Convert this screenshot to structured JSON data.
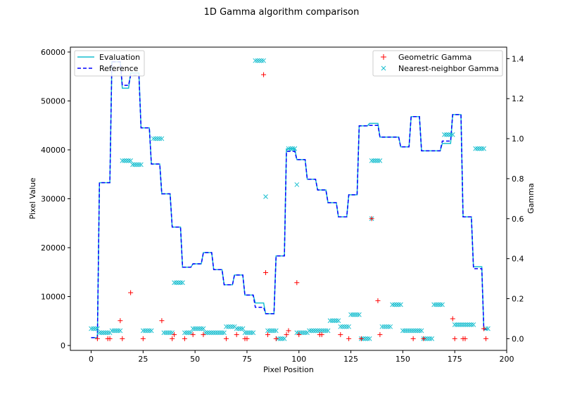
{
  "chart_data": {
    "type": "line",
    "title": "1D Gamma algorithm comparison",
    "xlabel": "Pixel Position",
    "ylabel": "Pixel Value",
    "y2label": "Gamma",
    "xlim": [
      -10,
      200
    ],
    "ylim": [
      -1000,
      61000
    ],
    "y2lim": [
      -0.0585,
      1.4575
    ],
    "x_ticks": [
      0,
      25,
      50,
      75,
      100,
      125,
      150,
      175,
      200
    ],
    "y_ticks": [
      0,
      10000,
      20000,
      30000,
      40000,
      50000,
      60000
    ],
    "y2_ticks": [
      0.0,
      0.2,
      0.4,
      0.6,
      0.8,
      1.0,
      1.2,
      1.4
    ],
    "legend_left": {
      "placement": "upper-left",
      "entries": [
        {
          "label": "Evaluation",
          "color": "#17becf",
          "style": "solid"
        },
        {
          "label": "Reference",
          "color": "#0000ff",
          "style": "dashed"
        }
      ]
    },
    "legend_right": {
      "placement": "upper-right",
      "entries": [
        {
          "label": "Geometric Gamma",
          "color": "#ff0000",
          "marker": "+"
        },
        {
          "label": "Nearest-neighbor Gamma",
          "color": "#17becf",
          "marker": "x"
        }
      ]
    },
    "reference_steps": [
      [
        0,
        1600
      ],
      [
        3,
        1600
      ],
      [
        4,
        33300
      ],
      [
        9,
        33300
      ],
      [
        10,
        58000
      ],
      [
        14,
        58000
      ],
      [
        15,
        53200
      ],
      [
        18,
        53200
      ],
      [
        19,
        55200
      ],
      [
        23,
        55200
      ],
      [
        24,
        44500
      ],
      [
        28,
        44500
      ],
      [
        29,
        37100
      ],
      [
        33,
        37100
      ],
      [
        34,
        31000
      ],
      [
        38,
        31000
      ],
      [
        39,
        24200
      ],
      [
        43,
        24200
      ],
      [
        44,
        16000
      ],
      [
        48,
        16000
      ],
      [
        49,
        16700
      ],
      [
        53,
        16700
      ],
      [
        54,
        19000
      ],
      [
        58,
        19000
      ],
      [
        59,
        15500
      ],
      [
        63,
        15500
      ],
      [
        64,
        12400
      ],
      [
        68,
        12400
      ],
      [
        69,
        14400
      ],
      [
        73,
        14400
      ],
      [
        74,
        10300
      ],
      [
        78,
        10300
      ],
      [
        79,
        7800
      ],
      [
        83,
        7800
      ],
      [
        84,
        6500
      ],
      [
        88,
        6500
      ],
      [
        89,
        18300
      ],
      [
        93,
        18300
      ],
      [
        94,
        39700
      ],
      [
        98,
        39700
      ],
      [
        99,
        38000
      ],
      [
        103,
        38000
      ],
      [
        104,
        34000
      ],
      [
        108,
        34000
      ],
      [
        109,
        31800
      ],
      [
        113,
        31800
      ],
      [
        114,
        29200
      ],
      [
        118,
        29200
      ],
      [
        119,
        26300
      ],
      [
        123,
        26300
      ],
      [
        124,
        30800
      ],
      [
        128,
        30800
      ],
      [
        129,
        44900
      ],
      [
        133,
        44900
      ],
      [
        134,
        45000
      ],
      [
        138,
        45000
      ],
      [
        139,
        42600
      ],
      [
        148,
        42600
      ],
      [
        149,
        40600
      ],
      [
        153,
        40600
      ],
      [
        154,
        46800
      ],
      [
        158,
        46800
      ],
      [
        159,
        39800
      ],
      [
        168,
        39800
      ],
      [
        169,
        41800
      ],
      [
        173,
        41800
      ],
      [
        174,
        47200
      ],
      [
        178,
        47200
      ],
      [
        179,
        26300
      ],
      [
        183,
        26300
      ],
      [
        184,
        15700
      ],
      [
        188,
        15700
      ],
      [
        189,
        3300
      ],
      [
        191,
        3300
      ]
    ],
    "evaluation_steps": [
      [
        0,
        1600
      ],
      [
        3,
        1600
      ],
      [
        4,
        33300
      ],
      [
        9,
        33300
      ],
      [
        10,
        58000
      ],
      [
        14,
        58000
      ],
      [
        15,
        52600
      ],
      [
        18,
        52600
      ],
      [
        19,
        55700
      ],
      [
        23,
        55700
      ],
      [
        24,
        44500
      ],
      [
        28,
        44500
      ],
      [
        29,
        37100
      ],
      [
        33,
        37100
      ],
      [
        34,
        31000
      ],
      [
        38,
        31000
      ],
      [
        39,
        24200
      ],
      [
        43,
        24200
      ],
      [
        44,
        16000
      ],
      [
        48,
        16000
      ],
      [
        49,
        16700
      ],
      [
        53,
        16700
      ],
      [
        54,
        19000
      ],
      [
        58,
        19000
      ],
      [
        59,
        15500
      ],
      [
        63,
        15500
      ],
      [
        64,
        12400
      ],
      [
        68,
        12400
      ],
      [
        69,
        14400
      ],
      [
        73,
        14400
      ],
      [
        74,
        10300
      ],
      [
        78,
        10300
      ],
      [
        79,
        8700
      ],
      [
        83,
        8700
      ],
      [
        84,
        6500
      ],
      [
        88,
        6500
      ],
      [
        89,
        18300
      ],
      [
        93,
        18300
      ],
      [
        94,
        40200
      ],
      [
        98,
        40200
      ],
      [
        99,
        38000
      ],
      [
        103,
        38000
      ],
      [
        104,
        34000
      ],
      [
        108,
        34000
      ],
      [
        109,
        31800
      ],
      [
        113,
        31800
      ],
      [
        114,
        29200
      ],
      [
        118,
        29200
      ],
      [
        119,
        26300
      ],
      [
        123,
        26300
      ],
      [
        124,
        30800
      ],
      [
        128,
        30800
      ],
      [
        129,
        44900
      ],
      [
        133,
        44900
      ],
      [
        134,
        45400
      ],
      [
        138,
        45400
      ],
      [
        139,
        42600
      ],
      [
        148,
        42600
      ],
      [
        149,
        40600
      ],
      [
        153,
        40600
      ],
      [
        154,
        46800
      ],
      [
        158,
        46800
      ],
      [
        159,
        39800
      ],
      [
        168,
        39800
      ],
      [
        169,
        41300
      ],
      [
        173,
        41300
      ],
      [
        174,
        47200
      ],
      [
        178,
        47200
      ],
      [
        179,
        26300
      ],
      [
        183,
        26300
      ],
      [
        184,
        16100
      ],
      [
        188,
        16100
      ],
      [
        189,
        3300
      ],
      [
        191,
        3300
      ]
    ],
    "geometric_gamma": [
      [
        3,
        0.0
      ],
      [
        8,
        0.0
      ],
      [
        9,
        0.0
      ],
      [
        14,
        0.09
      ],
      [
        15,
        0.0
      ],
      [
        19,
        0.23
      ],
      [
        25,
        0.0
      ],
      [
        34,
        0.09
      ],
      [
        39,
        0.0
      ],
      [
        40,
        0.02
      ],
      [
        45,
        0.0
      ],
      [
        49,
        0.02
      ],
      [
        54,
        0.02
      ],
      [
        65,
        0.0
      ],
      [
        70,
        0.02
      ],
      [
        74,
        0.0
      ],
      [
        75,
        0.0
      ],
      [
        83,
        1.32
      ],
      [
        84,
        0.33
      ],
      [
        85,
        0.02
      ],
      [
        89,
        0.0
      ],
      [
        94,
        0.02
      ],
      [
        95,
        0.04
      ],
      [
        99,
        0.28
      ],
      [
        100,
        0.02
      ],
      [
        110,
        0.02
      ],
      [
        111,
        0.02
      ],
      [
        120,
        0.02
      ],
      [
        124,
        0.0
      ],
      [
        130,
        0.0
      ],
      [
        135,
        0.6
      ],
      [
        138,
        0.19
      ],
      [
        139,
        0.02
      ],
      [
        155,
        0.0
      ],
      [
        160,
        0.0
      ],
      [
        174,
        0.1
      ],
      [
        175,
        0.0
      ],
      [
        179,
        0.0
      ],
      [
        180,
        0.0
      ],
      [
        189,
        0.05
      ],
      [
        190,
        0.0
      ]
    ],
    "nn_gamma_segments": [
      [
        0,
        3,
        0.05
      ],
      [
        4,
        9,
        0.03
      ],
      [
        10,
        14,
        0.04
      ],
      [
        15,
        19,
        0.89
      ],
      [
        20,
        24,
        0.87
      ],
      [
        25,
        29,
        0.04
      ],
      [
        30,
        34,
        1.0
      ],
      [
        35,
        39,
        0.03
      ],
      [
        40,
        44,
        0.28
      ],
      [
        45,
        48,
        0.03
      ],
      [
        49,
        54,
        0.05
      ],
      [
        55,
        59,
        0.03
      ],
      [
        60,
        64,
        0.03
      ],
      [
        65,
        69,
        0.06
      ],
      [
        70,
        73,
        0.05
      ],
      [
        74,
        78,
        0.03
      ],
      [
        79,
        83,
        1.39
      ],
      [
        85,
        89,
        0.04
      ],
      [
        90,
        93,
        0.0
      ],
      [
        95,
        98,
        0.95
      ],
      [
        99,
        104,
        0.03
      ],
      [
        105,
        109,
        0.04
      ],
      [
        110,
        114,
        0.04
      ],
      [
        115,
        119,
        0.09
      ],
      [
        120,
        124,
        0.06
      ],
      [
        125,
        129,
        0.12
      ],
      [
        130,
        134,
        0.0
      ],
      [
        135,
        139,
        0.89
      ],
      [
        140,
        144,
        0.06
      ],
      [
        145,
        149,
        0.17
      ],
      [
        150,
        154,
        0.04
      ],
      [
        155,
        159,
        0.04
      ],
      [
        160,
        164,
        0.0
      ],
      [
        165,
        169,
        0.17
      ],
      [
        170,
        174,
        1.02
      ],
      [
        175,
        184,
        0.07
      ],
      [
        185,
        189,
        0.95
      ],
      [
        190,
        191,
        0.05
      ]
    ],
    "nn_gamma_extra": [
      [
        84,
        0.71
      ],
      [
        99,
        0.77
      ],
      [
        135,
        0.6
      ]
    ]
  }
}
